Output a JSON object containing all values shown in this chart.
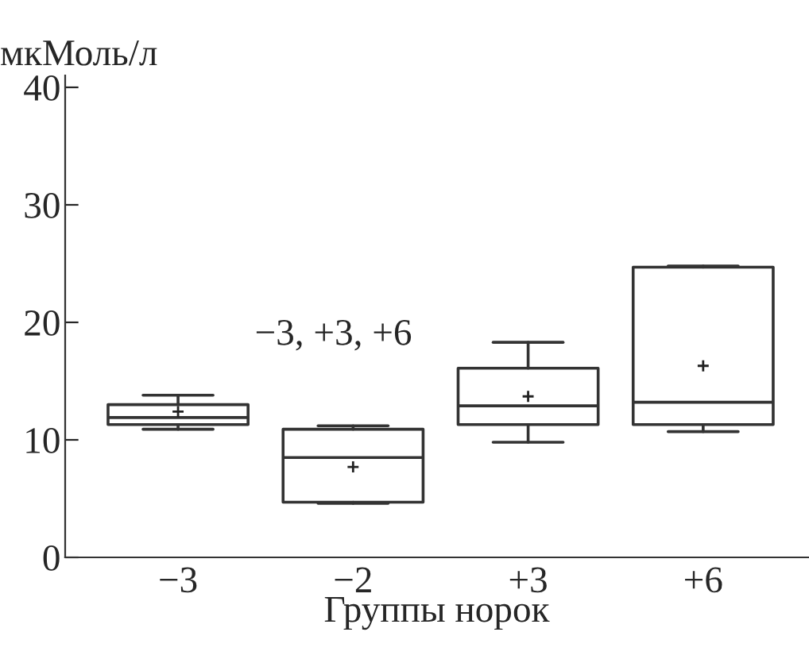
{
  "chart_data": {
    "type": "box",
    "ylabel": "мкМоль/л",
    "xlabel": "Группы норок",
    "categories": [
      "−3",
      "−2",
      "+3",
      "+6"
    ],
    "boxes": [
      {
        "low": 10.9,
        "q1": 11.3,
        "median": 11.9,
        "q3": 13.0,
        "high": 13.8,
        "mean": 12.4
      },
      {
        "low": 4.6,
        "q1": 4.7,
        "median": 8.5,
        "q3": 10.9,
        "high": 11.2,
        "mean": 7.7
      },
      {
        "low": 9.8,
        "q1": 11.3,
        "median": 12.9,
        "q3": 16.1,
        "high": 18.3,
        "mean": 13.7
      },
      {
        "low": 10.7,
        "q1": 11.3,
        "median": 13.2,
        "q3": 24.7,
        "high": 24.8,
        "mean": 16.3
      }
    ],
    "annotations": [
      "−3, +3, +6"
    ],
    "ylim": [
      0,
      41
    ],
    "yticks": [
      0,
      10,
      20,
      30,
      40
    ],
    "grid": false,
    "legend": false
  }
}
